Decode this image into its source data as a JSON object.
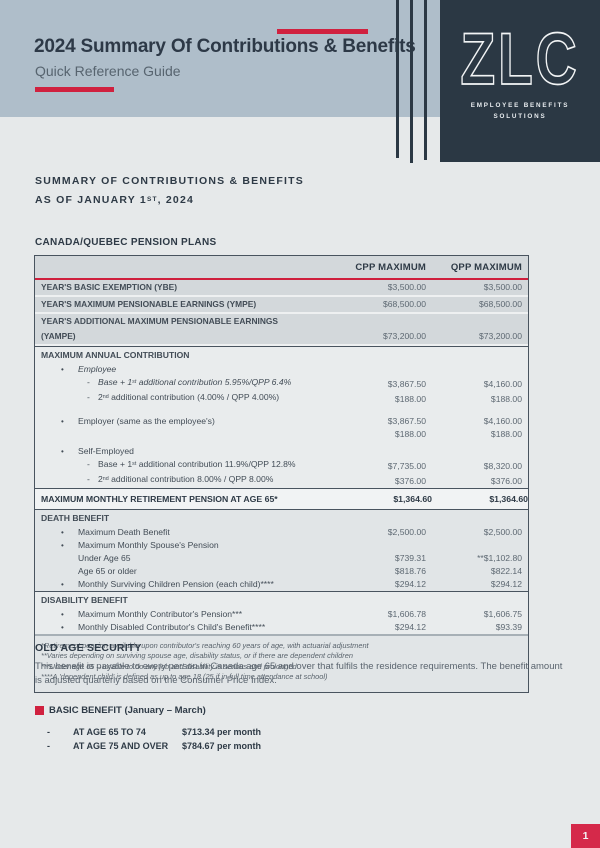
{
  "header": {
    "title": "2024 Summary Of Contributions & Benefits",
    "subtitle": "Quick Reference Guide"
  },
  "logo": {
    "brand": "ZLC",
    "tagline_line1": "EMPLOYEE BENEFITS",
    "tagline_line2": "SOLUTIONS"
  },
  "colors": {
    "accent_red": "#d0213f",
    "navy": "#2b3844",
    "header_band": "#afbeca",
    "page_bg": "#e6e9ea"
  },
  "summary_heading": {
    "line1": "SUMMARY OF CONTRIBUTIONS & BENEFITS",
    "line2_prefix": "AS OF JANUARY 1",
    "line2_sup": "ST",
    "line2_suffix": ", 2024"
  },
  "pension_table": {
    "section_title": "CANADA/QUEBEC PENSION PLANS",
    "col1": "CPP MAXIMUM",
    "col2": "QPP MAXIMUM",
    "rows": [
      {
        "type": "gray",
        "label": "YEAR'S BASIC EXEMPTION (YBE)",
        "cpp": "$3,500.00",
        "qpp": "$3,500.00"
      },
      {
        "type": "gray",
        "label": "YEAR'S MAXIMUM PENSIONABLE EARNINGS (YMPE)",
        "cpp": "$68,500.00",
        "qpp": "$68,500.00"
      },
      {
        "type": "gray",
        "label": "YEAR'S ADDITIONAL MAXIMUM PENSIONABLE EARNINGS (YAMPE)",
        "cpp": "$73,200.00",
        "qpp": "$73,200.00"
      },
      {
        "type": "section",
        "label": "MAXIMUM ANNUAL CONTRIBUTION"
      },
      {
        "type": "bullet",
        "italic": true,
        "label": "Employee"
      },
      {
        "type": "dash",
        "italic": true,
        "label": "Base + 1^st additional contribution 5.95%/QPP 6.4%",
        "cpp": "$3,867.50",
        "qpp": "$4,160.00"
      },
      {
        "type": "dash",
        "label": "2^nd additional contribution (4.00% / QPP 4.00%)",
        "cpp": "$188.00",
        "qpp": "$188.00"
      },
      {
        "type": "spacer",
        "h": 9
      },
      {
        "type": "bullet",
        "label": "Employer (same as the employee's)",
        "cpp": "$3,867.50",
        "qpp": "$4,160.00"
      },
      {
        "type": "cont",
        "cpp": "$188.00",
        "qpp": "$188.00"
      },
      {
        "type": "spacer",
        "h": 4
      },
      {
        "type": "bullet",
        "label": "Self-Employed"
      },
      {
        "type": "dash",
        "label": "Base + 1^st additional contribution 11.9%/QPP 12.8%",
        "cpp": "$7,735.00",
        "qpp": "$8,320.00"
      },
      {
        "type": "dash",
        "label": "2^nd additional contribution 8.00% / QPP 8.00%",
        "cpp": "$376.00",
        "qpp": "$376.00"
      },
      {
        "type": "strong",
        "label": "MAXIMUM MONTHLY RETIREMENT PENSION AT AGE 65*",
        "cpp": "$1,364.60",
        "qpp": "$1,364.60"
      },
      {
        "type": "section",
        "shade": true,
        "label": "DEATH BENEFIT"
      },
      {
        "type": "bullet",
        "shade": true,
        "label": "Maximum Death Benefit",
        "cpp": "$2,500.00",
        "qpp": "$2,500.00"
      },
      {
        "type": "bullet",
        "shade": true,
        "label": "Maximum Monthly Spouse's Pension"
      },
      {
        "type": "plain",
        "shade": true,
        "label": "Under Age 65",
        "cpp": "$739.31",
        "qpp": "**$1,102.80"
      },
      {
        "type": "plain",
        "shade": true,
        "label": "Age 65 or older",
        "cpp": "$818.76",
        "qpp": "$822.14"
      },
      {
        "type": "bullet",
        "shade": true,
        "label": "Monthly Surviving Children Pension (each child)****",
        "cpp": "$294.12",
        "qpp": "$294.12"
      },
      {
        "type": "section",
        "label": "DISABILITY BENEFIT"
      },
      {
        "type": "bullet",
        "label": "Maximum Monthly Contributor's Pension***",
        "cpp": "$1,606.78",
        "qpp": "$1,606.75"
      },
      {
        "type": "bullet",
        "label": "Monthly Disabled Contributor's Child's Benefit****",
        "cpp": "$294.12",
        "qpp": "$93.39"
      }
    ],
    "footnotes": [
      "*Retirement pension available upon contributor's reaching 60 years of age, with actuarial adjustment",
      "**Varies depending on surviving spouse age, disability status, or if there are dependent children",
      "***Under age 65 – unable to do any job and disability is serious and prolonged",
      "****A 'dependent child' is defined as up to age 18 (25 if in full time attendance at school)"
    ]
  },
  "oas": {
    "title": "OLD AGE SECURITY",
    "description": "This benefit is payable to every person in Canada age 65 and over that fulfils the residence requirements. The benefit amount is adjusted quarterly based on the Consumer Price Index.",
    "basic_benefit_label": "BASIC BENEFIT (January – March)",
    "rates": [
      {
        "label": "AT AGE 65 TO 74",
        "value": "$713.34 per month"
      },
      {
        "label": "AT AGE 75 AND OVER",
        "value": "$784.67 per month"
      }
    ]
  },
  "footer": {
    "page_number": "1"
  }
}
